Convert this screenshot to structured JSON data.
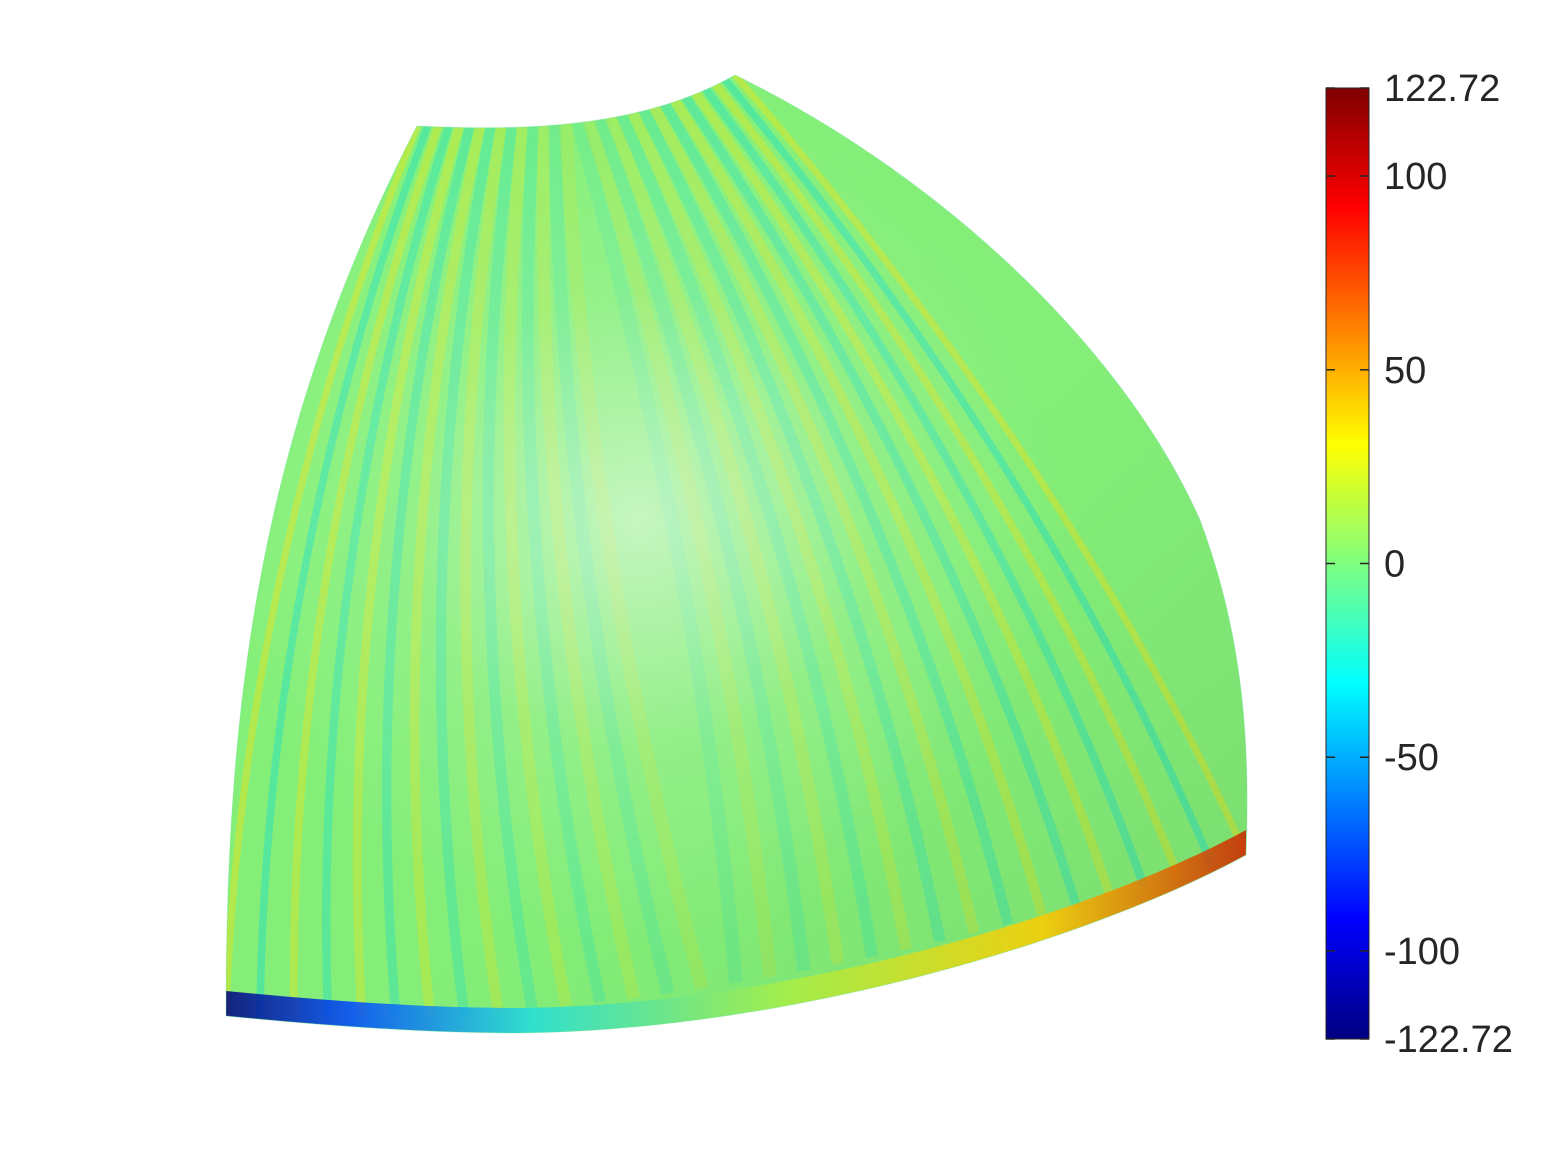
{
  "chart_data": {
    "type": "heatmap",
    "subtype": "3d-surface",
    "colormap": "jet",
    "title": "",
    "xlabel": "",
    "ylabel": "",
    "colorbar": {
      "clim": [
        -122.72,
        122.72
      ],
      "ticks": [
        {
          "value": 122.72,
          "label": "122.72"
        },
        {
          "value": 100,
          "label": "100"
        },
        {
          "value": 50,
          "label": "50"
        },
        {
          "value": 0,
          "label": "0"
        },
        {
          "value": -50,
          "label": "-50"
        },
        {
          "value": -100,
          "label": "-100"
        },
        {
          "value": -122.72,
          "label": "-122.72"
        }
      ],
      "stops": [
        {
          "value": -122.72,
          "color": "#00007f"
        },
        {
          "value": -91.9,
          "color": "#0000ff"
        },
        {
          "value": -30.7,
          "color": "#00ffff"
        },
        {
          "value": 0,
          "color": "#7fff7f"
        },
        {
          "value": 30.7,
          "color": "#ffff00"
        },
        {
          "value": 91.9,
          "color": "#ff0000"
        },
        {
          "value": 122.72,
          "color": "#7f0000"
        }
      ]
    },
    "surface": {
      "description_values": "Predominantly near-zero values across the spherical patch with thin alternating stripes; extremes near the bottom-left (min -122.72) and lower-right edge (max 122.72).",
      "interior_range": [
        -15,
        15
      ],
      "edge_min": -122.72,
      "edge_max": 122.72,
      "stripe_count": 30
    },
    "grid": false,
    "legend": "none"
  }
}
